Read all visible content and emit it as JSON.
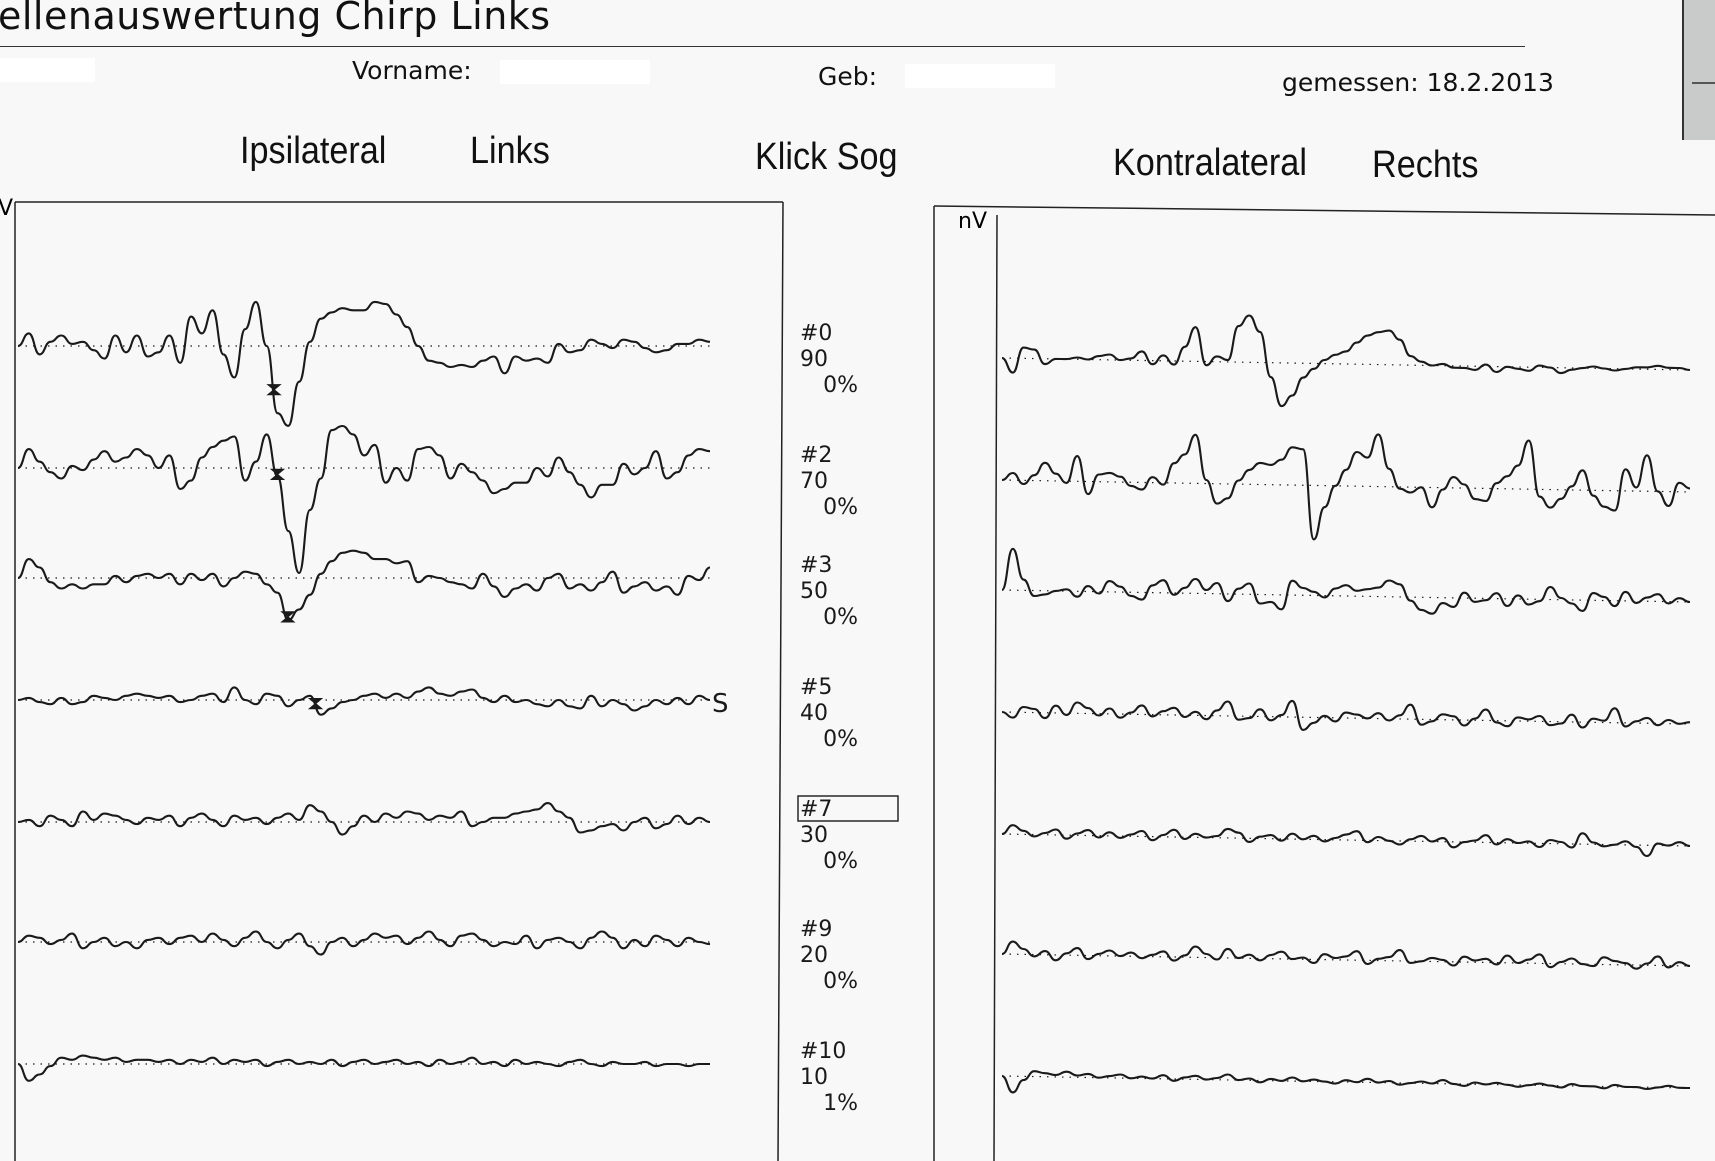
{
  "header": {
    "title": "ellenauswertung Chirp Links",
    "vorname_label": "Vorname:",
    "geb_label": "Geb:",
    "gemessen": "gemessen: 18.2.2013"
  },
  "headings": {
    "ipsilateral": "Ipsilateral",
    "links": "Links",
    "stimulus": "Klick Sog",
    "kontralateral": "Kontralateral",
    "rechts": "Rechts"
  },
  "colors": {
    "trace": "#1a1a1a",
    "frame": "#222222",
    "background": "#f7f8f7"
  },
  "chart_data": {
    "type": "line",
    "unit_label_left": "V",
    "unit_label_right": "nV",
    "marker_label": "S",
    "marker_row": 3,
    "highlighted_row": 4,
    "rows": [
      {
        "id": "#0",
        "level": "90",
        "percent": "0%"
      },
      {
        "id": "#2",
        "level": "70",
        "percent": "0%"
      },
      {
        "id": "#3",
        "level": "50",
        "percent": "0%"
      },
      {
        "id": "#5",
        "level": "40",
        "percent": "0%"
      },
      {
        "id": "#7",
        "level": "30",
        "percent": "0%"
      },
      {
        "id": "#9",
        "level": "20",
        "percent": "0%"
      },
      {
        "id": "#10",
        "level": "10",
        "percent": "1%"
      }
    ],
    "x_range": [
      0,
      20
    ],
    "ipsilateral": [
      {
        "values": [
          0,
          0.6,
          -0.4,
          0.2,
          0.5,
          0.1,
          0.2,
          -0.2,
          -0.6,
          0.5,
          -0.3,
          0.5,
          -0.5,
          -0.3,
          0.5,
          -0.8,
          1.4,
          0.6,
          1.7,
          -0.4,
          -1.5,
          0.8,
          2.1,
          0,
          -3.2,
          -3.8,
          -1.7,
          0.2,
          1.3,
          1.6,
          1.8,
          1.7,
          1.7,
          2.1,
          2.0,
          1.5,
          0.9,
          0,
          -0.7,
          -0.8,
          -1.0,
          -0.9,
          -1.0,
          -0.7,
          -0.5,
          -1.3,
          -0.5,
          -0.7,
          -0.6,
          -0.8,
          0.1,
          -0.3,
          -0.2,
          0.3,
          0.1,
          -0.1,
          0.3,
          0.2,
          -0.1,
          -0.3,
          -0.2,
          0.1,
          0.1,
          0.3,
          0.2
        ],
        "peak_x": 7.4
      },
      {
        "values": [
          0,
          0.9,
          0.3,
          -0.2,
          -0.5,
          0.1,
          -0.1,
          0.4,
          0.8,
          0.3,
          0.5,
          0.9,
          0.6,
          0,
          0.6,
          -1.0,
          -0.6,
          0.5,
          1.0,
          1.3,
          1.5,
          -0.6,
          0.3,
          1.6,
          -0.4,
          -3.0,
          -5.0,
          -2.0,
          -0.5,
          1.8,
          2.0,
          1.6,
          0.6,
          1.1,
          -0.7,
          0,
          -0.6,
          0.9,
          1.0,
          0.6,
          -0.5,
          0.2,
          -0.2,
          -0.6,
          -1.2,
          -1.0,
          -0.7,
          -0.7,
          0,
          -0.4,
          0.5,
          -0.2,
          -0.8,
          -1.4,
          -0.8,
          -0.8,
          0.2,
          -0.3,
          0,
          0.8,
          -0.5,
          -0.2,
          0.6,
          0.9,
          0.8
        ],
        "peak_x": 7.5
      },
      {
        "values": [
          0,
          0.9,
          0.5,
          -0.2,
          -0.5,
          -0.3,
          -0.5,
          -0.3,
          -0.3,
          0.1,
          -0.2,
          0.1,
          0.2,
          0,
          0.2,
          -0.3,
          0.2,
          -0.1,
          0.2,
          -0.4,
          0,
          0.3,
          0.2,
          -0.3,
          -0.7,
          -2.0,
          -1.5,
          -0.8,
          0.2,
          0.8,
          1.2,
          1.3,
          1.2,
          0.9,
          0.9,
          0.7,
          0.8,
          -0.2,
          0.1,
          0,
          -0.2,
          -0.3,
          -0.5,
          0.2,
          -0.4,
          -0.9,
          -0.5,
          -0.3,
          -0.6,
          0,
          0.2,
          -0.5,
          -0.3,
          -0.6,
          -0.2,
          0.3,
          -0.7,
          -0.4,
          -0.2,
          -0.6,
          -0.4,
          -0.8,
          0.1,
          -0.1,
          0.5
        ],
        "peak_x": 7.8
      },
      {
        "values": [
          0,
          0.1,
          -0.1,
          -0.2,
          0.1,
          -0.2,
          -0.1,
          0.2,
          0.1,
          0,
          0.2,
          0.3,
          0.2,
          0.1,
          0.2,
          -0.1,
          0,
          0.2,
          0.3,
          -0.1,
          0.6,
          0,
          -0.2,
          0.3,
          0.2,
          -0.3,
          0,
          0.2,
          -0.7,
          -0.4,
          -0.1,
          0,
          0.2,
          0.3,
          0.1,
          0.3,
          0.1,
          0.4,
          0.6,
          0.3,
          0.2,
          0.4,
          0.5,
          0.1,
          -0.1,
          0.2,
          -0.1,
          0,
          -0.2,
          -0.3,
          0,
          -0.3,
          -0.4,
          0.2,
          -0.3,
          0,
          -0.2,
          -0.5,
          -0.3,
          0,
          -0.2,
          0.1,
          -0.2,
          0.2,
          0
        ],
        "peak_x": 8.6
      },
      {
        "values": [
          0,
          0.1,
          -0.2,
          0.3,
          0.1,
          -0.2,
          0.5,
          0.1,
          0.4,
          0.3,
          0.1,
          -0.1,
          0.2,
          0.1,
          0.3,
          -0.2,
          0.2,
          0.4,
          0.1,
          -0.2,
          0.3,
          0.1,
          0.2,
          -0.1,
          0.2,
          0.4,
          0.1,
          0.8,
          0.5,
          0,
          -0.6,
          -0.2,
          0.3,
          0,
          0.4,
          0.2,
          0.5,
          0.4,
          0.1,
          0.3,
          0.2,
          0.5,
          -0.2,
          0,
          0.2,
          0.2,
          0.4,
          0.5,
          0.6,
          0.9,
          0.5,
          0.2,
          -0.5,
          -0.4,
          -0.2,
          -0.1,
          -0.4,
          0,
          0.2,
          -0.3,
          -0.1,
          0.3,
          -0.1,
          0.2,
          0
        ]
      },
      {
        "values": [
          0,
          0.3,
          0.2,
          -0.1,
          0.1,
          0.4,
          -0.3,
          0,
          0.2,
          -0.2,
          0,
          -0.3,
          0.1,
          0.2,
          -0.1,
          0.2,
          0.3,
          0,
          0.4,
          0.1,
          -0.2,
          0.2,
          0.5,
          0,
          -0.3,
          0.1,
          0.4,
          -0.2,
          -0.6,
          0,
          0.2,
          -0.2,
          0.1,
          0.4,
          0.2,
          0.3,
          -0.1,
          0.2,
          0.5,
          0.1,
          -0.2,
          0.3,
          0.4,
          0.1,
          -0.2,
          0,
          -0.1,
          0.3,
          -0.3,
          0.1,
          0.2,
          0,
          -0.3,
          0.2,
          0.5,
          0.2,
          -0.3,
          0.1,
          -0.2,
          0.3,
          0.1,
          -0.2,
          0.2,
          0,
          -0.1
        ]
      },
      {
        "values": [
          0,
          -0.8,
          -0.5,
          -0.1,
          0.3,
          0.2,
          0.4,
          0.3,
          0.2,
          0.3,
          0.1,
          0.2,
          0.2,
          0.1,
          0.2,
          0,
          0.2,
          0.1,
          0.3,
          0,
          0.2,
          0.1,
          0.2,
          -0.1,
          0.1,
          0.2,
          0,
          0.1,
          0,
          0.2,
          -0.1,
          0.1,
          0.2,
          0,
          0.1,
          0.2,
          0,
          0.1,
          -0.1,
          0.2,
          0,
          0.1,
          0.3,
          0,
          0.1,
          -0.1,
          0.2,
          0,
          0.1,
          0,
          -0.1,
          0.1,
          0.2,
          0,
          -0.1,
          0.1,
          0,
          0,
          0.1,
          -0.1,
          0,
          0,
          -0.1,
          0,
          0
        ]
      }
    ],
    "kontralateral": [
      {
        "values": [
          0,
          -0.8,
          0.6,
          0.5,
          -0.3,
          0,
          0,
          0.1,
          0,
          0.2,
          0.3,
          0,
          0.1,
          0.5,
          -0.2,
          0.3,
          -0.2,
          0.8,
          1.9,
          -0.2,
          0.3,
          0.1,
          2.0,
          2.6,
          1.7,
          -0.8,
          -2.4,
          -1.8,
          -0.8,
          -0.3,
          0.2,
          0.5,
          0.7,
          1.2,
          1.6,
          1.8,
          1.9,
          1.4,
          0.5,
          0.2,
          0,
          0.1,
          -0.1,
          -0.1,
          -0.2,
          0.1,
          -0.3,
          0,
          -0.1,
          -0.2,
          0.1,
          0,
          -0.3,
          -0.1,
          0,
          0.1,
          0,
          -0.1,
          0,
          0.1,
          0.1,
          0.2,
          0.1,
          0.1,
          0
        ]
      },
      {
        "values": [
          0,
          0.4,
          -0.2,
          0.3,
          1.0,
          0.4,
          -0.1,
          1.4,
          -0.7,
          0.4,
          0.5,
          0.3,
          -0.2,
          -0.4,
          0.3,
          -0.1,
          1.1,
          1.6,
          2.7,
          0.2,
          -1.1,
          -0.8,
          0.2,
          0.8,
          1.2,
          1.1,
          1.4,
          2.1,
          2.0,
          -3.0,
          -1.2,
          0,
          0.9,
          1.9,
          1.6,
          2.9,
          1.0,
          -0.1,
          -0.3,
          0,
          -1.1,
          -0.1,
          0.6,
          0.2,
          -0.6,
          -0.7,
          0.3,
          0.7,
          1.3,
          2.7,
          -0.4,
          -1.0,
          -0.5,
          0.2,
          1.1,
          -0.3,
          -0.9,
          -1.1,
          1.2,
          0.2,
          2.0,
          0,
          -0.8,
          0.5,
          0.2
        ]
      },
      {
        "values": [
          0,
          2.3,
          0.6,
          -0.3,
          -0.2,
          0,
          0.1,
          -0.3,
          0.3,
          -0.1,
          0.6,
          0.3,
          -0.2,
          -0.4,
          0.4,
          0.7,
          -0.1,
          0.3,
          0.8,
          0.2,
          0.6,
          -0.4,
          0.3,
          0.6,
          -0.5,
          -0.4,
          -0.8,
          0.8,
          0.4,
          0.2,
          -0.1,
          0.4,
          0.6,
          0.3,
          0.4,
          0.5,
          0.9,
          0.7,
          -0.2,
          -0.7,
          -0.9,
          -0.3,
          -0.5,
          0.3,
          -0.2,
          -0.1,
          0.3,
          -0.4,
          0.2,
          -0.3,
          -0.1,
          0.7,
          0.1,
          -0.2,
          -0.6,
          0.4,
          0.2,
          -0.3,
          0.5,
          -0.1,
          0.2,
          0.4,
          -0.1,
          0.2,
          0
        ]
      },
      {
        "values": [
          0,
          -0.3,
          0.3,
          0.2,
          -0.3,
          0.4,
          -0.1,
          0.6,
          0.3,
          -0.1,
          0.3,
          -0.2,
          0.1,
          0.5,
          -0.1,
          0.2,
          0.4,
          -0.1,
          0.2,
          -0.2,
          0.3,
          0.8,
          -0.2,
          -0.1,
          0.4,
          -0.2,
          0.1,
          0.9,
          -0.7,
          -0.3,
          0.1,
          -0.2,
          0.3,
          0.2,
          0,
          0.3,
          -0.1,
          0.2,
          0.8,
          -0.3,
          -0.1,
          0.3,
          0.2,
          -0.3,
          0.1,
          0.6,
          -0.1,
          -0.3,
          0.2,
          0.1,
          0.3,
          -0.2,
          -0.1,
          0.4,
          -0.3,
          0.2,
          0.1,
          0.8,
          -0.2,
          0.1,
          0.3,
          -0.1,
          0.2,
          0,
          0.1
        ]
      },
      {
        "values": [
          0,
          0.5,
          0.2,
          -0.1,
          0.1,
          0.3,
          -0.2,
          0.1,
          0.3,
          -0.1,
          0.2,
          -0.1,
          0.1,
          0.3,
          -0.2,
          0.1,
          0.4,
          -0.1,
          0.2,
          0,
          0.1,
          0.5,
          0.3,
          -0.2,
          0.1,
          0.2,
          -0.1,
          0.3,
          0,
          0.2,
          -0.1,
          0.1,
          0.3,
          0.5,
          -0.1,
          0.2,
          0,
          -0.2,
          0.1,
          0.3,
          0,
          0.2,
          -0.3,
          0,
          0.1,
          0.4,
          -0.1,
          0.2,
          0,
          0.1,
          -0.2,
          0.2,
          0.1,
          -0.2,
          0.6,
          0.1,
          -0.1,
          0,
          0.2,
          -0.1,
          -0.6,
          0.1,
          0,
          0.2,
          0
        ]
      },
      {
        "values": [
          0,
          0.7,
          0.3,
          -0.1,
          0.2,
          -0.3,
          0.1,
          0.4,
          -0.2,
          0.1,
          0.3,
          0,
          0.2,
          -0.1,
          0.1,
          0.3,
          -0.2,
          0.1,
          0.6,
          0.2,
          -0.1,
          0.5,
          0,
          0.2,
          -0.1,
          0.2,
          0.4,
          0,
          0.1,
          -0.2,
          0.3,
          0.1,
          0.2,
          0.5,
          -0.2,
          0.1,
          0.2,
          0.6,
          -0.1,
          0,
          0.2,
          0.1,
          -0.2,
          0.3,
          0.1,
          0.2,
          -0.1,
          0.4,
          0,
          0.2,
          0.5,
          -0.2,
          0.1,
          0.3,
          0,
          -0.1,
          0.4,
          0.2,
          0.1,
          -0.2,
          0.1,
          0.5,
          -0.1,
          0.2,
          0
        ]
      },
      {
        "values": [
          0,
          -0.9,
          -0.2,
          0.3,
          0.2,
          0.1,
          0.3,
          0.1,
          0.2,
          0,
          0.1,
          0.2,
          0,
          0.1,
          0,
          0.2,
          -0.1,
          0.1,
          0.2,
          0,
          0.1,
          0.3,
          0,
          0.1,
          -0.1,
          0.1,
          0,
          0.2,
          0,
          0.1,
          0,
          -0.1,
          0.1,
          0,
          0.2,
          0,
          0.1,
          -0.1,
          0,
          0.1,
          0,
          0.2,
          0,
          -0.1,
          0.1,
          0,
          0.1,
          0,
          -0.1,
          0,
          0.1,
          0,
          -0.1,
          0.1,
          0,
          0,
          -0.1,
          0.1,
          0,
          0,
          -0.1,
          0,
          0.1,
          0,
          0
        ]
      }
    ]
  }
}
